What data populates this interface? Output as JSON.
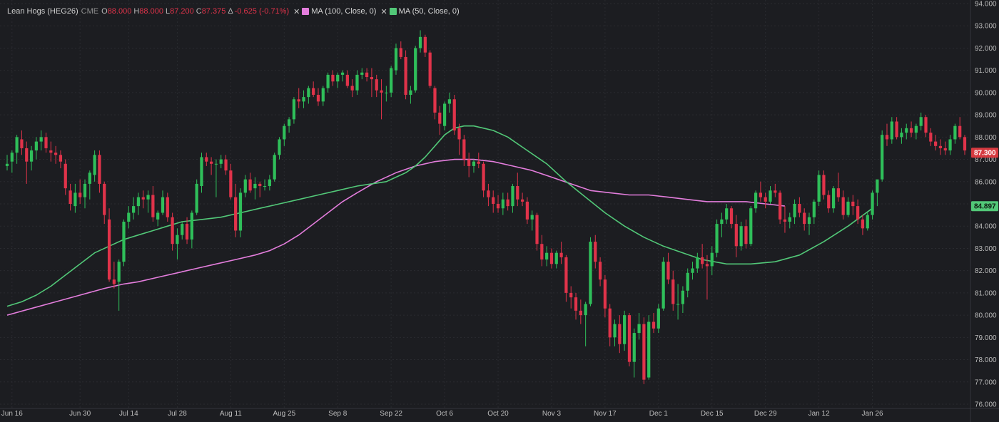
{
  "header": {
    "symbol": "Lean Hogs (HEG26)",
    "exchange": "CME",
    "open_label": "O",
    "open": "88.000",
    "high_label": "H",
    "high": "88.000",
    "low_label": "L",
    "low": "87.200",
    "close_label": "C",
    "close": "87.375",
    "change_label": "Δ",
    "change": "-0.625 (-0.71%)",
    "close_icon": "close-x-icon",
    "ma100_label": "MA (100, Close, 0)",
    "ma50_label": "MA (50, Close, 0)"
  },
  "colors": {
    "background": "#1c1d21",
    "grid": "#2a2b30",
    "up": "#2fbf5a",
    "down": "#e0334a",
    "ma100": "#e37ddc",
    "ma50": "#52c878",
    "axis_text": "#bdbdbd",
    "last_price_bg": "#d63a40",
    "ma50_tag_bg": "#52c878"
  },
  "price_tags": {
    "last_price": "87.300",
    "ma_value": "84.897"
  },
  "chart_data": {
    "type": "candlestick",
    "ylim": [
      76,
      94
    ],
    "y_ticks": [
      "76.000",
      "77.000",
      "78.000",
      "79.000",
      "80.000",
      "81.000",
      "82.000",
      "83.000",
      "84.000",
      "85.000",
      "86.000",
      "87.000",
      "88.000",
      "89.000",
      "90.000",
      "91.000",
      "92.000",
      "93.000",
      "94.000"
    ],
    "x_ticks": [
      "Jun 16",
      "Jun 30",
      "Jul 14",
      "Jul 28",
      "Aug 11",
      "Aug 25",
      "Sep 8",
      "Sep 22",
      "Oct 6",
      "Oct 20",
      "Nov 3",
      "Nov 17",
      "Dec 1",
      "Dec 15",
      "Dec 29",
      "Jan 12",
      "Jan 26"
    ],
    "x_tick_index": [
      1,
      15,
      25,
      35,
      46,
      57,
      68,
      79,
      90,
      101,
      112,
      123,
      134,
      145,
      156,
      167,
      178
    ],
    "candles": [
      [
        86.7,
        87.2,
        86.5,
        86.8
      ],
      [
        86.9,
        87.4,
        86.4,
        87.3
      ],
      [
        87.3,
        88.1,
        86.8,
        88.0
      ],
      [
        87.9,
        88.3,
        87.2,
        87.5
      ],
      [
        87.5,
        87.8,
        85.9,
        86.9
      ],
      [
        86.9,
        87.6,
        86.5,
        87.4
      ],
      [
        87.4,
        88.0,
        87.0,
        87.8
      ],
      [
        87.8,
        88.3,
        87.4,
        88.0
      ],
      [
        88.0,
        88.2,
        87.3,
        87.5
      ],
      [
        87.4,
        87.8,
        86.9,
        87.3
      ],
      [
        87.3,
        87.6,
        86.8,
        87.2
      ],
      [
        87.2,
        87.4,
        86.6,
        86.9
      ],
      [
        86.8,
        87.0,
        85.4,
        85.7
      ],
      [
        85.6,
        85.9,
        84.7,
        85.0
      ],
      [
        84.9,
        85.9,
        84.6,
        85.5
      ],
      [
        85.5,
        86.1,
        85.0,
        85.3
      ],
      [
        85.3,
        86.1,
        84.8,
        85.9
      ],
      [
        85.9,
        86.5,
        85.2,
        86.4
      ],
      [
        86.3,
        87.4,
        86.0,
        87.2
      ],
      [
        87.2,
        87.4,
        85.5,
        85.9
      ],
      [
        85.9,
        86.0,
        84.1,
        84.5
      ],
      [
        84.3,
        84.8,
        81.5,
        81.6
      ],
      [
        81.6,
        82.4,
        81.2,
        81.4
      ],
      [
        81.5,
        82.5,
        80.2,
        82.4
      ],
      [
        82.4,
        84.3,
        82.2,
        84.2
      ],
      [
        84.2,
        84.9,
        83.9,
        84.6
      ],
      [
        84.6,
        85.3,
        84.3,
        84.9
      ],
      [
        84.9,
        85.5,
        84.5,
        85.3
      ],
      [
        85.3,
        85.6,
        84.8,
        85.2
      ],
      [
        85.2,
        85.6,
        84.6,
        85.4
      ],
      [
        85.4,
        85.8,
        84.2,
        84.4
      ],
      [
        84.3,
        84.7,
        84.0,
        84.6
      ],
      [
        84.6,
        85.6,
        84.5,
        85.3
      ],
      [
        85.3,
        85.5,
        84.2,
        84.4
      ],
      [
        84.4,
        84.6,
        82.9,
        83.2
      ],
      [
        83.2,
        83.9,
        82.5,
        83.6
      ],
      [
        83.6,
        84.2,
        83.4,
        84.1
      ],
      [
        84.1,
        84.4,
        83.2,
        83.4
      ],
      [
        83.4,
        84.7,
        83.0,
        84.6
      ],
      [
        84.6,
        86.1,
        84.5,
        85.9
      ],
      [
        85.8,
        87.3,
        85.5,
        87.1
      ],
      [
        87.1,
        87.3,
        86.7,
        86.9
      ],
      [
        86.9,
        87.1,
        86.3,
        86.8
      ],
      [
        86.8,
        87.0,
        85.3,
        86.8
      ],
      [
        86.8,
        87.2,
        86.6,
        87.0
      ],
      [
        87.0,
        87.2,
        86.3,
        86.5
      ],
      [
        86.5,
        86.8,
        85.2,
        85.3
      ],
      [
        85.3,
        85.9,
        83.5,
        83.8
      ],
      [
        83.8,
        85.7,
        83.5,
        85.5
      ],
      [
        85.5,
        86.3,
        85.3,
        86.1
      ],
      [
        86.1,
        86.4,
        85.5,
        85.6
      ],
      [
        85.7,
        86.2,
        85.2,
        85.9
      ],
      [
        85.9,
        86.0,
        85.3,
        85.8
      ],
      [
        85.8,
        86.1,
        85.6,
        85.8
      ],
      [
        85.8,
        86.3,
        85.6,
        86.1
      ],
      [
        86.1,
        87.3,
        86.0,
        87.2
      ],
      [
        87.2,
        88.0,
        87.0,
        87.9
      ],
      [
        87.9,
        88.6,
        87.6,
        88.5
      ],
      [
        88.5,
        88.9,
        88.2,
        88.8
      ],
      [
        88.8,
        89.8,
        88.6,
        89.7
      ],
      [
        89.7,
        90.2,
        89.3,
        89.6
      ],
      [
        89.6,
        90.1,
        89.3,
        89.8
      ],
      [
        89.8,
        90.3,
        89.5,
        90.2
      ],
      [
        90.2,
        90.5,
        89.8,
        89.9
      ],
      [
        89.9,
        90.2,
        89.4,
        89.6
      ],
      [
        89.6,
        90.3,
        89.4,
        90.2
      ],
      [
        90.2,
        90.9,
        90.0,
        90.8
      ],
      [
        90.8,
        91.0,
        90.3,
        90.5
      ],
      [
        90.5,
        90.9,
        90.2,
        90.8
      ],
      [
        90.8,
        91.0,
        90.5,
        90.9
      ],
      [
        90.8,
        91.0,
        90.2,
        90.3
      ],
      [
        90.3,
        90.6,
        89.8,
        90.1
      ],
      [
        90.1,
        91.0,
        89.9,
        90.8
      ],
      [
        90.8,
        91.1,
        90.6,
        90.9
      ],
      [
        90.9,
        91.1,
        90.5,
        90.7
      ],
      [
        90.7,
        91.1,
        89.8,
        90.6
      ],
      [
        90.6,
        90.8,
        89.8,
        90.1
      ],
      [
        90.1,
        90.6,
        88.8,
        90.0
      ],
      [
        90.0,
        90.3,
        89.6,
        90.0
      ],
      [
        90.0,
        91.2,
        89.8,
        91.1
      ],
      [
        91.0,
        92.2,
        90.8,
        92.0
      ],
      [
        92.0,
        92.3,
        91.5,
        91.6
      ],
      [
        91.6,
        91.9,
        89.7,
        89.9
      ],
      [
        89.9,
        90.3,
        89.5,
        90.1
      ],
      [
        90.1,
        92.1,
        90.0,
        92.0
      ],
      [
        92.0,
        92.8,
        91.8,
        92.5
      ],
      [
        92.5,
        92.6,
        91.6,
        91.8
      ],
      [
        91.8,
        91.9,
        90.2,
        90.3
      ],
      [
        90.2,
        90.3,
        88.8,
        89.1
      ],
      [
        89.1,
        89.4,
        88.1,
        88.6
      ],
      [
        88.5,
        89.6,
        88.3,
        89.5
      ],
      [
        89.5,
        90.0,
        89.1,
        89.7
      ],
      [
        89.7,
        89.9,
        88.1,
        88.3
      ],
      [
        88.4,
        88.6,
        87.2,
        87.9
      ],
      [
        87.9,
        88.1,
        86.7,
        87.0
      ],
      [
        87.0,
        87.3,
        86.2,
        86.7
      ],
      [
        86.7,
        87.0,
        86.4,
        86.9
      ],
      [
        86.9,
        87.3,
        86.6,
        86.8
      ],
      [
        86.8,
        86.9,
        85.3,
        85.6
      ],
      [
        85.6,
        85.9,
        84.9,
        85.3
      ],
      [
        85.3,
        85.6,
        84.6,
        85.0
      ],
      [
        85.0,
        85.4,
        84.6,
        84.8
      ],
      [
        84.8,
        85.5,
        84.5,
        85.2
      ],
      [
        85.2,
        85.5,
        84.7,
        84.9
      ],
      [
        84.9,
        85.9,
        84.6,
        85.8
      ],
      [
        85.8,
        86.4,
        84.9,
        85.2
      ],
      [
        85.2,
        85.5,
        84.9,
        85.1
      ],
      [
        85.1,
        85.3,
        84.1,
        84.3
      ],
      [
        84.3,
        84.7,
        83.8,
        84.5
      ],
      [
        84.5,
        84.6,
        82.9,
        83.2
      ],
      [
        83.2,
        83.6,
        82.2,
        82.5
      ],
      [
        82.5,
        83.1,
        82.2,
        82.8
      ],
      [
        82.8,
        83.0,
        82.1,
        82.3
      ],
      [
        82.3,
        82.9,
        82.1,
        82.8
      ],
      [
        82.8,
        83.3,
        82.3,
        82.6
      ],
      [
        82.6,
        82.7,
        80.6,
        81.0
      ],
      [
        81.0,
        81.3,
        80.3,
        80.8
      ],
      [
        80.8,
        81.0,
        79.8,
        80.2
      ],
      [
        80.2,
        80.7,
        79.6,
        80.0
      ],
      [
        80.0,
        80.6,
        78.6,
        80.5
      ],
      [
        80.5,
        83.5,
        80.4,
        83.3
      ],
      [
        83.3,
        83.6,
        82.1,
        82.4
      ],
      [
        82.4,
        82.6,
        81.3,
        81.6
      ],
      [
        81.6,
        81.8,
        79.9,
        80.3
      ],
      [
        80.3,
        80.5,
        78.6,
        79.0
      ],
      [
        79.0,
        79.8,
        78.6,
        79.6
      ],
      [
        79.6,
        80.0,
        78.3,
        78.7
      ],
      [
        78.7,
        80.2,
        78.4,
        80.0
      ],
      [
        80.0,
        80.1,
        77.7,
        77.9
      ],
      [
        77.9,
        79.4,
        77.2,
        79.2
      ],
      [
        79.2,
        80.1,
        78.9,
        79.6
      ],
      [
        79.6,
        79.9,
        76.9,
        77.1
      ],
      [
        77.2,
        80.0,
        77.1,
        79.7
      ],
      [
        79.7,
        80.1,
        79.2,
        79.4
      ],
      [
        79.4,
        80.5,
        79.2,
        80.3
      ],
      [
        80.3,
        82.6,
        80.2,
        82.4
      ],
      [
        82.4,
        82.8,
        81.4,
        81.6
      ],
      [
        81.6,
        82.0,
        80.2,
        80.5
      ],
      [
        80.5,
        81.4,
        79.8,
        80.5
      ],
      [
        80.5,
        81.3,
        80.1,
        81.1
      ],
      [
        81.1,
        82.1,
        80.8,
        81.9
      ],
      [
        81.9,
        82.4,
        81.6,
        82.1
      ],
      [
        82.1,
        82.8,
        81.9,
        82.6
      ],
      [
        82.6,
        83.2,
        82.1,
        82.3
      ],
      [
        82.3,
        82.7,
        80.7,
        82.2
      ],
      [
        82.2,
        83.1,
        81.8,
        82.8
      ],
      [
        82.8,
        84.3,
        82.6,
        84.1
      ],
      [
        84.1,
        84.6,
        83.5,
        84.3
      ],
      [
        84.3,
        85.0,
        84.1,
        84.8
      ],
      [
        84.8,
        84.9,
        83.9,
        84.1
      ],
      [
        84.1,
        84.5,
        82.6,
        83.1
      ],
      [
        83.1,
        84.2,
        82.9,
        84.0
      ],
      [
        84.0,
        84.3,
        83.0,
        83.2
      ],
      [
        83.2,
        84.9,
        83.1,
        84.8
      ],
      [
        84.8,
        85.6,
        84.6,
        85.5
      ],
      [
        85.5,
        86.0,
        85.1,
        85.3
      ],
      [
        85.3,
        85.5,
        84.8,
        85.1
      ],
      [
        85.1,
        85.8,
        85.0,
        85.6
      ],
      [
        85.6,
        85.9,
        85.3,
        85.5
      ],
      [
        85.5,
        85.6,
        84.1,
        84.3
      ],
      [
        84.3,
        84.9,
        83.7,
        84.2
      ],
      [
        84.2,
        84.6,
        83.9,
        84.4
      ],
      [
        84.4,
        85.2,
        84.1,
        85.0
      ],
      [
        85.0,
        85.3,
        84.4,
        84.6
      ],
      [
        84.6,
        84.8,
        83.8,
        84.1
      ],
      [
        84.1,
        84.6,
        83.6,
        84.4
      ],
      [
        84.4,
        85.2,
        84.1,
        85.1
      ],
      [
        85.1,
        86.5,
        84.9,
        86.3
      ],
      [
        86.3,
        86.5,
        85.2,
        85.4
      ],
      [
        85.4,
        85.6,
        84.6,
        84.8
      ],
      [
        84.8,
        85.8,
        84.6,
        85.7
      ],
      [
        85.7,
        86.4,
        85.1,
        85.3
      ],
      [
        85.3,
        85.6,
        84.3,
        84.5
      ],
      [
        84.5,
        85.3,
        84.4,
        85.1
      ],
      [
        85.1,
        85.4,
        84.5,
        84.9
      ],
      [
        84.9,
        85.2,
        84.1,
        84.3
      ],
      [
        84.3,
        84.5,
        83.6,
        83.9
      ],
      [
        83.9,
        84.6,
        83.8,
        84.5
      ],
      [
        84.5,
        85.6,
        84.3,
        85.5
      ],
      [
        85.5,
        86.0,
        84.9,
        86.1
      ],
      [
        86.1,
        88.3,
        86.0,
        88.1
      ],
      [
        88.1,
        88.6,
        87.6,
        87.9
      ],
      [
        87.9,
        88.9,
        87.7,
        88.7
      ],
      [
        88.7,
        88.9,
        87.9,
        88.0
      ],
      [
        88.0,
        88.4,
        87.7,
        88.2
      ],
      [
        88.2,
        88.6,
        87.9,
        88.4
      ],
      [
        88.4,
        88.7,
        88.0,
        88.2
      ],
      [
        88.2,
        88.6,
        87.9,
        88.5
      ],
      [
        88.5,
        89.1,
        88.3,
        88.9
      ],
      [
        88.9,
        89.0,
        88.0,
        88.2
      ],
      [
        88.2,
        88.4,
        87.6,
        87.8
      ],
      [
        87.8,
        88.1,
        87.4,
        87.6
      ],
      [
        87.6,
        87.9,
        87.2,
        87.5
      ],
      [
        87.5,
        87.8,
        87.2,
        87.4
      ],
      [
        87.4,
        88.1,
        87.2,
        87.9
      ],
      [
        87.9,
        88.6,
        87.7,
        88.5
      ],
      [
        88.5,
        88.9,
        87.9,
        88.0
      ],
      [
        88.0,
        88.1,
        87.2,
        87.4
      ]
    ],
    "ma50": [
      80.4,
      80.6,
      80.9,
      81.3,
      81.8,
      82.3,
      82.8,
      83.1,
      83.4,
      83.6,
      83.8,
      84.0,
      84.2,
      84.3,
      84.4,
      84.6,
      84.8,
      85.0,
      85.2,
      85.4,
      85.6,
      85.8,
      85.9,
      86.0,
      86.2,
      86.4,
      86.7,
      87.1,
      87.6,
      88.1,
      88.4,
      88.5,
      88.5,
      88.4,
      88.3,
      88.0,
      87.4,
      86.8,
      86.0,
      85.3,
      84.6,
      84.0,
      83.5,
      83.1,
      82.8,
      82.5,
      82.3,
      82.3,
      82.4,
      82.7,
      83.3,
      84.0,
      84.8
    ],
    "ma50_index": [
      0,
      3,
      6,
      9,
      12,
      15,
      18,
      21,
      24,
      27,
      30,
      33,
      36,
      40,
      44,
      48,
      52,
      56,
      60,
      64,
      68,
      72,
      75,
      78,
      80,
      82,
      84,
      86,
      88,
      90,
      92,
      94,
      96,
      98,
      100,
      103,
      107,
      111,
      115,
      119,
      123,
      127,
      131,
      135,
      139,
      143,
      148,
      153,
      158,
      163,
      168,
      173,
      178
    ],
    "ma100": [
      80.0,
      80.3,
      80.6,
      80.9,
      81.2,
      81.4,
      81.5,
      81.7,
      81.9,
      82.1,
      82.3,
      82.5,
      82.7,
      82.9,
      83.2,
      83.6,
      84.1,
      84.6,
      85.1,
      85.5,
      86.0,
      86.4,
      86.7,
      86.9,
      87.0,
      87.0,
      86.9,
      86.7,
      86.5,
      86.2,
      85.9,
      85.6,
      85.5,
      85.4,
      85.4,
      85.3,
      85.2,
      85.1,
      85.1,
      85.1,
      85.0,
      84.9
    ],
    "ma100_index": [
      0,
      5,
      10,
      15,
      20,
      24,
      27,
      31,
      35,
      39,
      43,
      47,
      51,
      54,
      57,
      60,
      63,
      66,
      69,
      72,
      76,
      80,
      84,
      88,
      92,
      96,
      100,
      104,
      108,
      112,
      116,
      120,
      124,
      128,
      132,
      136,
      140,
      144,
      148,
      152,
      156,
      160
    ]
  }
}
